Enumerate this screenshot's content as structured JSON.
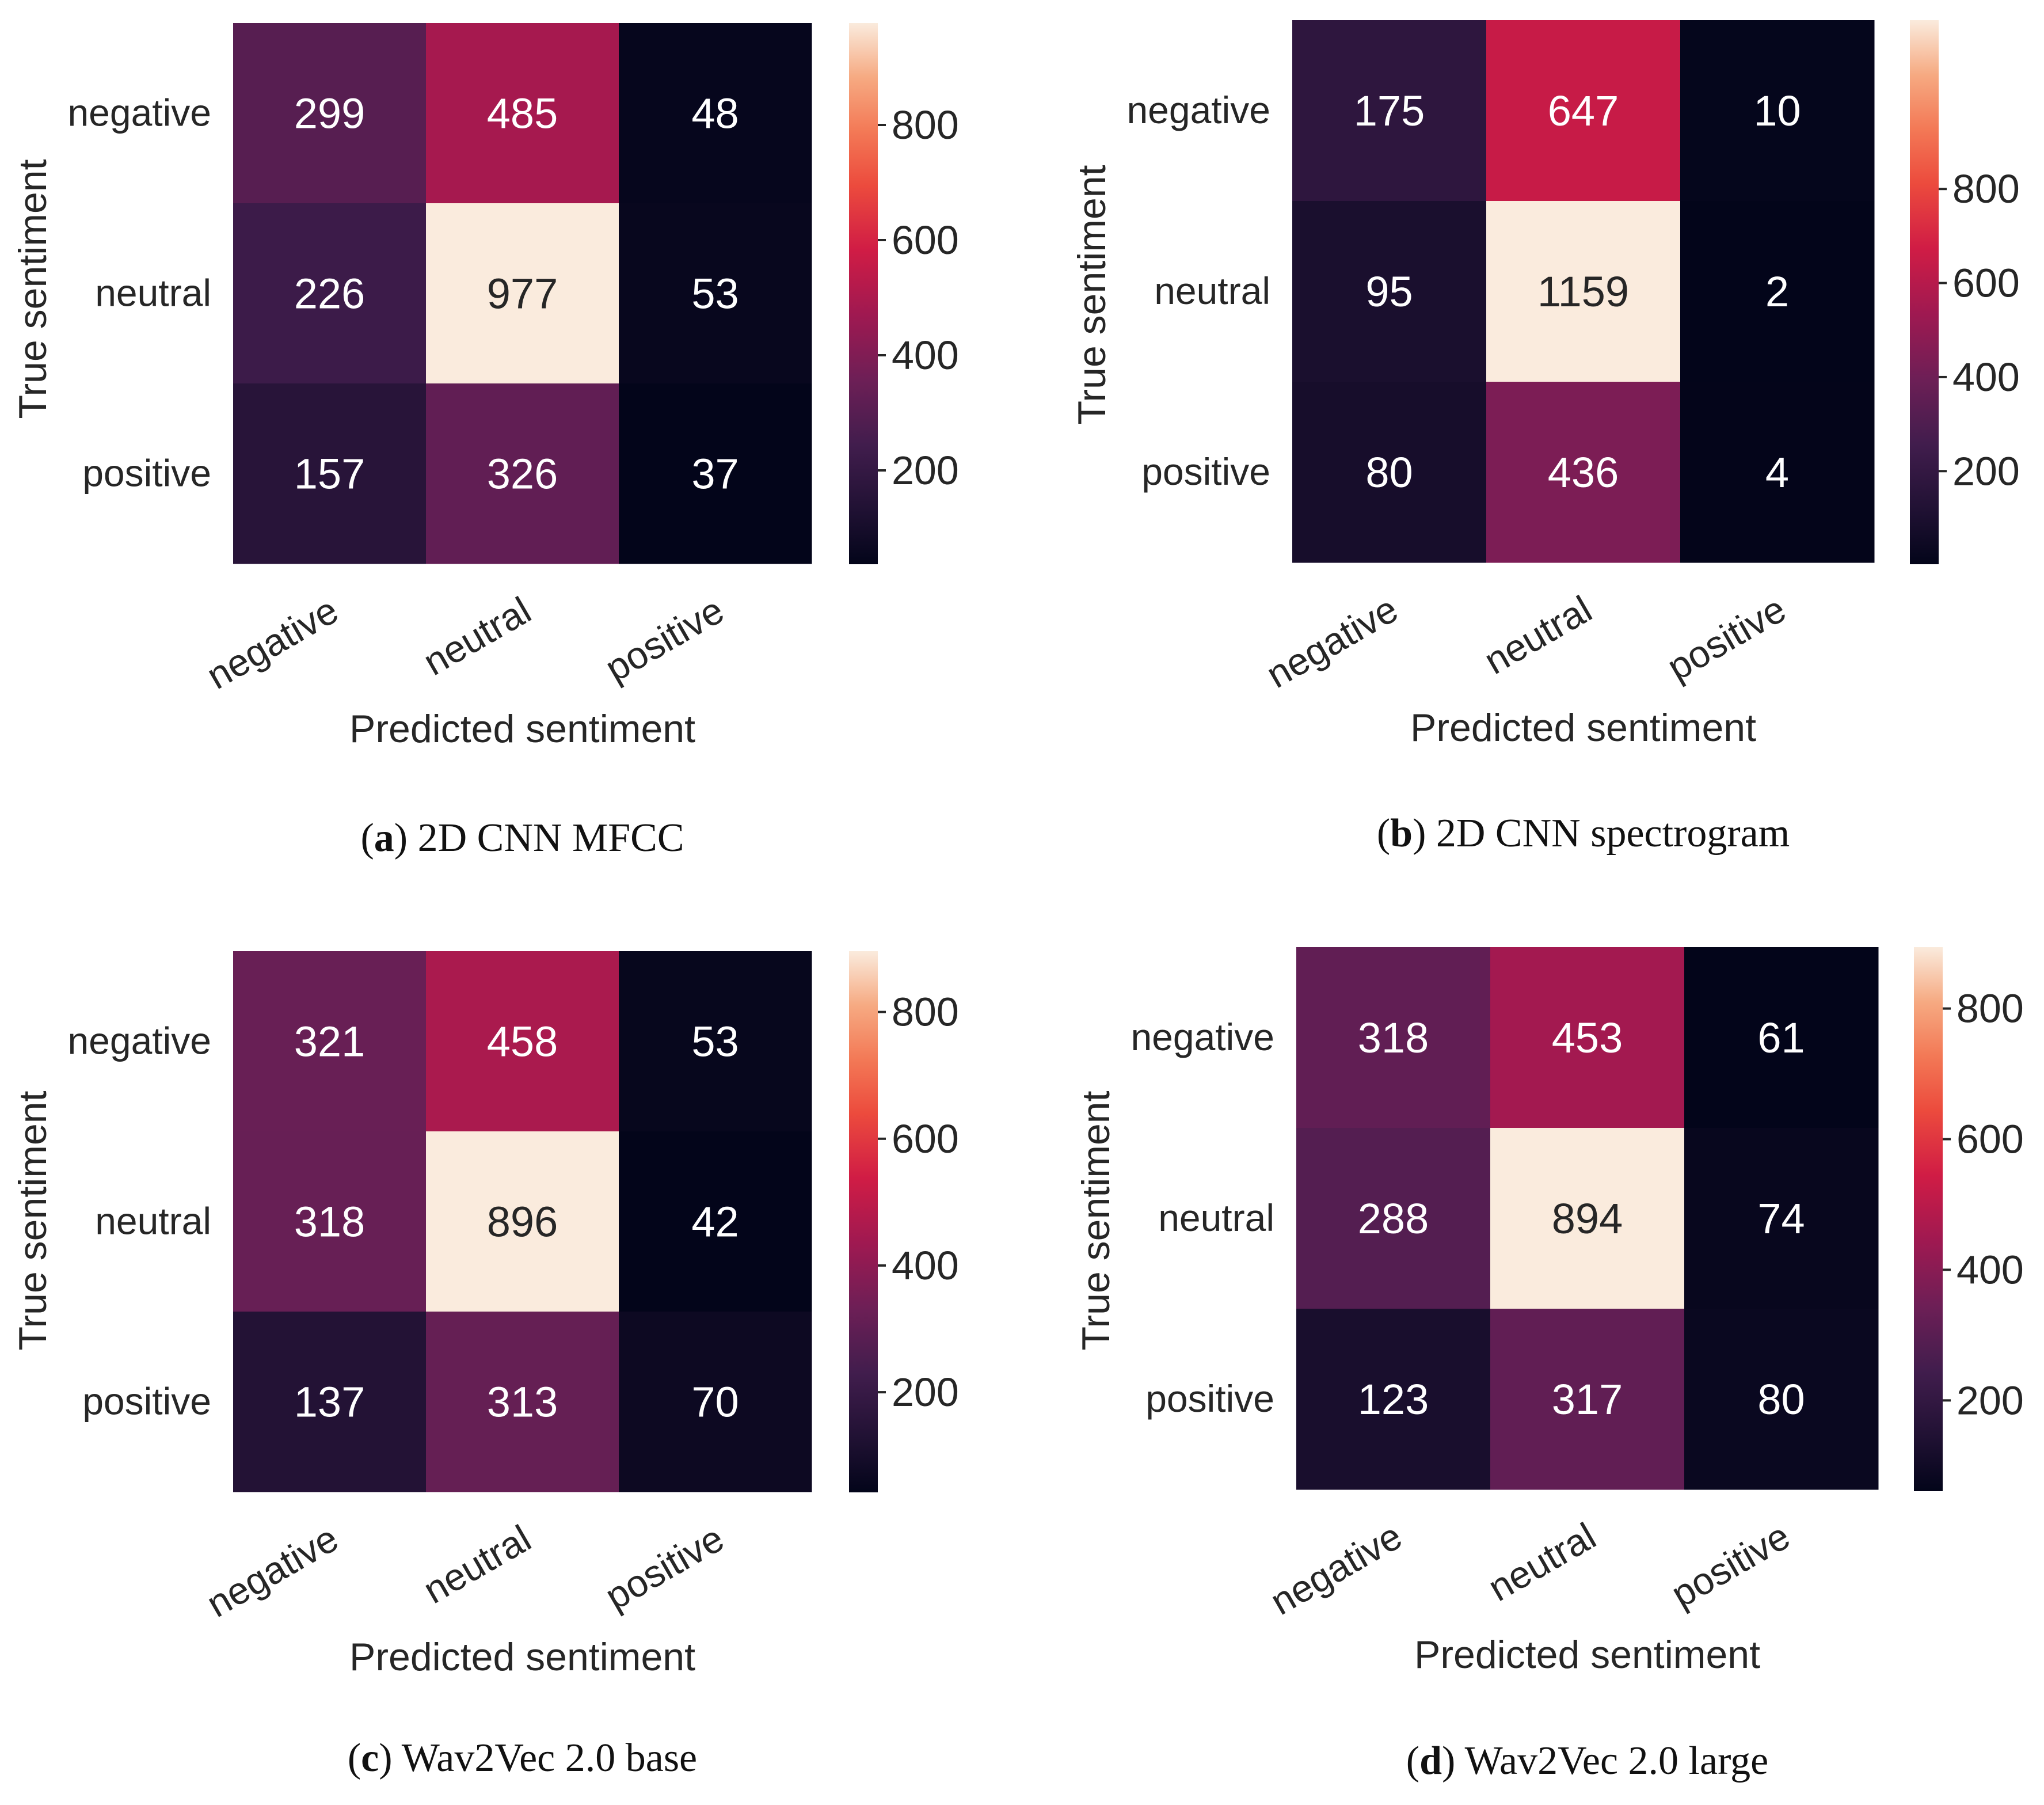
{
  "chart_data": [
    {
      "type": "heatmap",
      "caption_letter": "a",
      "caption_text": " 2D CNN MFCC",
      "xlabel": "Predicted sentiment",
      "ylabel": "True sentiment",
      "x_categories": [
        "negative",
        "neutral",
        "positive"
      ],
      "y_categories": [
        "negative",
        "neutral",
        "positive"
      ],
      "values": [
        [
          299,
          485,
          48
        ],
        [
          226,
          977,
          53
        ],
        [
          157,
          326,
          37
        ]
      ],
      "colorbar_range": [
        37,
        977
      ],
      "colorbar_ticks": [
        200,
        400,
        600,
        800
      ],
      "colormap": "rocket"
    },
    {
      "type": "heatmap",
      "caption_letter": "b",
      "caption_text": " 2D CNN spectrogram",
      "xlabel": "Predicted sentiment",
      "ylabel": "True sentiment",
      "x_categories": [
        "negative",
        "neutral",
        "positive"
      ],
      "y_categories": [
        "negative",
        "neutral",
        "positive"
      ],
      "values": [
        [
          175,
          647,
          10
        ],
        [
          95,
          1159,
          2
        ],
        [
          80,
          436,
          4
        ]
      ],
      "colorbar_range": [
        2,
        1159
      ],
      "colorbar_ticks": [
        200,
        400,
        600,
        800
      ],
      "colormap": "rocket"
    },
    {
      "type": "heatmap",
      "caption_letter": "c",
      "caption_text": " Wav2Vec 2.0 base",
      "xlabel": "Predicted sentiment",
      "ylabel": "True sentiment",
      "x_categories": [
        "negative",
        "neutral",
        "positive"
      ],
      "y_categories": [
        "negative",
        "neutral",
        "positive"
      ],
      "values": [
        [
          321,
          458,
          53
        ],
        [
          318,
          896,
          42
        ],
        [
          137,
          313,
          70
        ]
      ],
      "colorbar_range": [
        42,
        896
      ],
      "colorbar_ticks": [
        200,
        400,
        600,
        800
      ],
      "colormap": "rocket"
    },
    {
      "type": "heatmap",
      "caption_letter": "d",
      "caption_text": " Wav2Vec 2.0 large",
      "xlabel": "Predicted sentiment",
      "ylabel": "True sentiment",
      "x_categories": [
        "negative",
        "neutral",
        "positive"
      ],
      "y_categories": [
        "negative",
        "neutral",
        "positive"
      ],
      "values": [
        [
          318,
          453,
          61
        ],
        [
          288,
          894,
          74
        ],
        [
          123,
          317,
          80
        ]
      ],
      "colorbar_range": [
        61,
        894
      ],
      "colorbar_ticks": [
        200,
        400,
        600,
        800
      ],
      "colormap": "rocket"
    }
  ]
}
